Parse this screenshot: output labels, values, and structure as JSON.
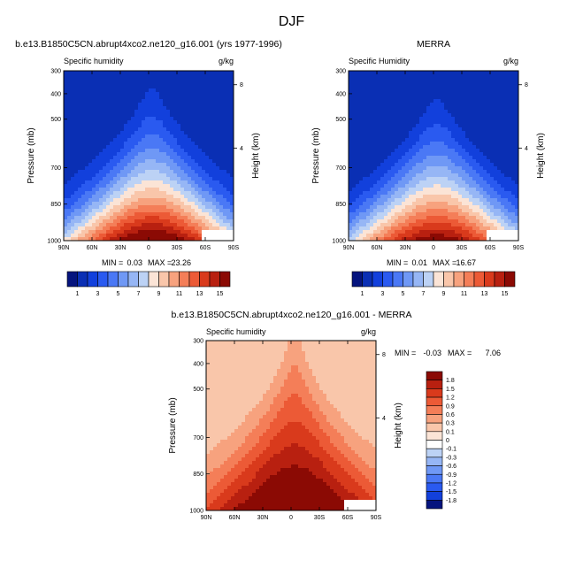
{
  "figure_title": "DJF",
  "chart_data": [
    {
      "type": "heatmap",
      "title": "b.e13.B1850C5CN.abrupt4xco2.ne120_g16.001 (yrs 1977-1996)",
      "subtitle_left": "Specific humidity",
      "subtitle_right": "g/kg",
      "xlabel": "",
      "ylabel": "Pressure (mb)",
      "ylabel_right": "Height (km)",
      "x_ticks": [
        "90N",
        "60N",
        "30N",
        "0",
        "30S",
        "60S",
        "90S"
      ],
      "y_ticks": [
        "300",
        "400",
        "500",
        "700",
        "850",
        "1000"
      ],
      "y_ticks_right": [
        "8",
        "4"
      ],
      "min_label": "MIN =",
      "min_value": "0.03",
      "max_label": "MAX =",
      "max_value": "23.26",
      "colorbar": {
        "orientation": "horizontal",
        "labels": [
          "1",
          "3",
          "5",
          "7",
          "9",
          "11",
          "13",
          "15"
        ],
        "colors": [
          "#05147e",
          "#0a2fb4",
          "#1240dc",
          "#2a5af0",
          "#4a78f5",
          "#6f98f5",
          "#96b6f5",
          "#bcd2f5",
          "#fbe4d6",
          "#f9c6aa",
          "#f7a27e",
          "#f47e58",
          "#ec5a36",
          "#d93a1c",
          "#b82010",
          "#8b0a04"
        ]
      },
      "peak_value": 17,
      "base_value": 1.5
    },
    {
      "type": "heatmap",
      "title": "MERRA",
      "subtitle_left": "Specific Humidity",
      "subtitle_right": "g/kg",
      "xlabel": "",
      "ylabel": "Pressure (mb)",
      "ylabel_right": "Height (km)",
      "x_ticks": [
        "90N",
        "60N",
        "30N",
        "0",
        "30S",
        "60S",
        "90S"
      ],
      "y_ticks": [
        "300",
        "400",
        "500",
        "700",
        "850",
        "1000"
      ],
      "y_ticks_right": [
        "8",
        "4"
      ],
      "min_label": "MIN =",
      "min_value": "0.01",
      "max_label": "MAX =",
      "max_value": "16.67",
      "colorbar": {
        "orientation": "horizontal",
        "labels": [
          "1",
          "3",
          "5",
          "7",
          "9",
          "11",
          "13",
          "15"
        ],
        "colors": [
          "#05147e",
          "#0a2fb4",
          "#1240dc",
          "#2a5af0",
          "#4a78f5",
          "#6f98f5",
          "#96b6f5",
          "#bcd2f5",
          "#fbe4d6",
          "#f9c6aa",
          "#f7a27e",
          "#f47e58",
          "#ec5a36",
          "#d93a1c",
          "#b82010",
          "#8b0a04"
        ]
      },
      "peak_value": 16,
      "base_value": 1.2
    },
    {
      "type": "heatmap",
      "title": "b.e13.B1850C5CN.abrupt4xco2.ne120_g16.001 - MERRA",
      "subtitle_left": "Specific humidity",
      "subtitle_right": "g/kg",
      "xlabel": "",
      "ylabel": "Pressure (mb)",
      "ylabel_right": "Height (km)",
      "x_ticks": [
        "90N",
        "60N",
        "30N",
        "0",
        "30S",
        "60S",
        "90S"
      ],
      "y_ticks": [
        "300",
        "400",
        "500",
        "700",
        "850",
        "1000"
      ],
      "y_ticks_right": [
        "8",
        "4"
      ],
      "min_label": "MIN =",
      "min_value": "-0.03",
      "max_label": "MAX =",
      "max_value": "7.06",
      "colorbar": {
        "orientation": "vertical",
        "labels": [
          "1.8",
          "1.5",
          "1.2",
          "0.9",
          "0.6",
          "0.3",
          "0.1",
          "0",
          "-0.1",
          "-0.3",
          "-0.6",
          "-0.9",
          "-1.2",
          "-1.5",
          "-1.8"
        ],
        "colors": [
          "#8b0a04",
          "#b82010",
          "#d93a1c",
          "#ec5a36",
          "#f47e58",
          "#f7a27e",
          "#f9c6aa",
          "#fbe4d6",
          "#ffffff",
          "#bcd2f5",
          "#96b6f5",
          "#6f98f5",
          "#4a78f5",
          "#2a5af0",
          "#1240dc",
          "#05147e"
        ]
      },
      "peak_value": 2.5,
      "base_value": 0.15
    }
  ]
}
